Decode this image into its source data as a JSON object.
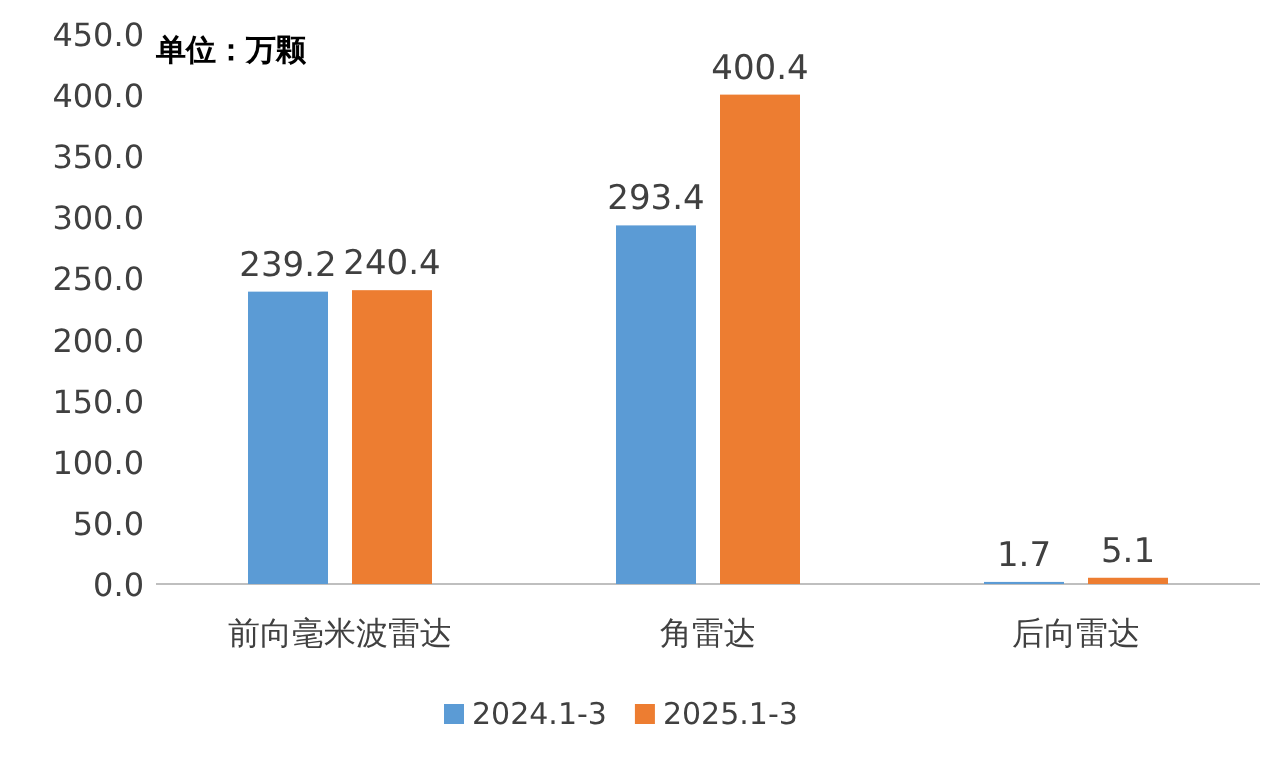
{
  "chart_data": {
    "type": "bar",
    "title": "单位：万颗",
    "categories": [
      "前向毫米波雷达",
      "角雷达",
      "后向雷达"
    ],
    "series": [
      {
        "name": "2024.1-3",
        "color": "#5b9bd5",
        "values": [
          239.2,
          293.4,
          1.7
        ]
      },
      {
        "name": "2025.1-3",
        "color": "#ed7d31",
        "values": [
          240.4,
          400.4,
          5.1
        ]
      }
    ],
    "ylim": [
      0,
      450
    ],
    "yticks": [
      {
        "value": 0,
        "label": "0.0"
      },
      {
        "value": 50,
        "label": "50.0"
      },
      {
        "value": 100,
        "label": "100.0"
      },
      {
        "value": 150,
        "label": "150.0"
      },
      {
        "value": 200,
        "label": "200.0"
      },
      {
        "value": 250,
        "label": "250.0"
      },
      {
        "value": 300,
        "label": "300.0"
      },
      {
        "value": 350,
        "label": "350.0"
      },
      {
        "value": 400,
        "label": "400.0"
      },
      {
        "value": 450,
        "label": "450.0"
      }
    ],
    "data_labels": true,
    "legend": "bottom"
  }
}
